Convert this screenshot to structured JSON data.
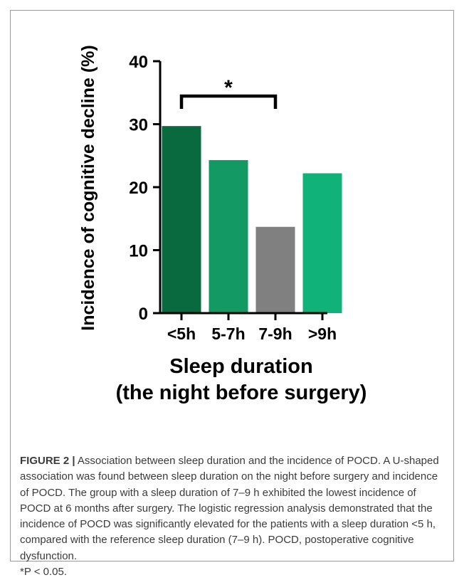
{
  "chart_data": {
    "type": "bar",
    "categories": [
      "<5h",
      "5-7h",
      "7-9h",
      ">9h"
    ],
    "values": [
      29.7,
      24.3,
      13.7,
      22.2
    ],
    "bar_colors": [
      "#0a6a3f",
      "#139a64",
      "#808080",
      "#10b27a"
    ],
    "ylabel": "Incidence of cognitive decline (%)",
    "xlabel_line1": "Sleep duration",
    "xlabel_line2": "(the night before surgery)",
    "ylim": [
      0,
      40
    ],
    "yticks": [
      0,
      10,
      20,
      30,
      40
    ],
    "grid": false,
    "significance": {
      "from": "<5h",
      "to": "7-9h",
      "label": "*"
    }
  },
  "caption": {
    "label": "FIGURE 2 |",
    "text": " Association between sleep duration and the incidence of POCD. A U-shaped association was found between sleep duration on the night before surgery and incidence of POCD. The group with a sleep duration of 7–9 h exhibited the lowest incidence of POCD at 6 months after surgery. The logistic regression analysis demonstrated that the incidence of POCD was significantly elevated for the patients with a sleep duration <5 h, compared with the reference sleep duration (7–9 h). POCD, postoperative cognitive dysfunction.",
    "footnote": "*P < 0.05."
  }
}
